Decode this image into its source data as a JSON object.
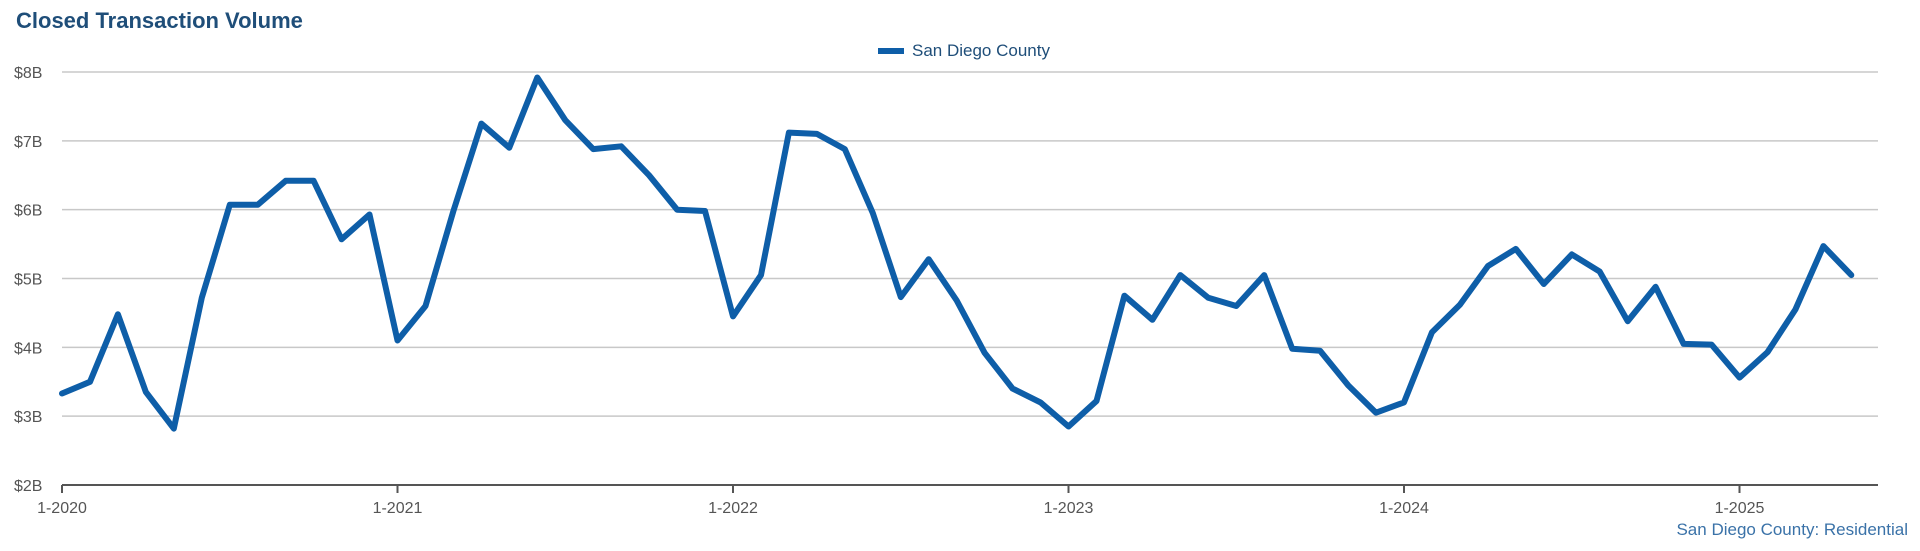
{
  "title": "Closed Transaction Volume",
  "source_note": "San Diego County: Residential",
  "colors": {
    "series": "#0e5ea8",
    "grid": "#c8c8c8",
    "axis": "#555555",
    "title": "#1f4e79"
  },
  "chart_data": {
    "type": "line",
    "title": "Closed Transaction Volume",
    "xlabel": "",
    "ylabel": "",
    "ylim": [
      2,
      8
    ],
    "y_unit": "billions USD",
    "y_ticks": [
      2,
      3,
      4,
      5,
      6,
      7,
      8
    ],
    "y_tick_labels": [
      "$2B",
      "$3B",
      "$4B",
      "$5B",
      "$6B",
      "$7B",
      "$8B"
    ],
    "x_ticks": [
      "2020-01",
      "2021-01",
      "2022-01",
      "2023-01",
      "2024-01",
      "2025-01"
    ],
    "x_tick_labels": [
      "1-2020",
      "1-2021",
      "1-2022",
      "1-2023",
      "1-2024",
      "1-2025"
    ],
    "x_range": [
      "2020-01",
      "2025-06"
    ],
    "grid": true,
    "legend_position": "top-center",
    "series": [
      {
        "name": "San Diego County",
        "x": [
          "2020-01",
          "2020-02",
          "2020-03",
          "2020-04",
          "2020-05",
          "2020-06",
          "2020-07",
          "2020-08",
          "2020-09",
          "2020-10",
          "2020-11",
          "2020-12",
          "2021-01",
          "2021-02",
          "2021-03",
          "2021-04",
          "2021-05",
          "2021-06",
          "2021-07",
          "2021-08",
          "2021-09",
          "2021-10",
          "2021-11",
          "2021-12",
          "2022-01",
          "2022-02",
          "2022-03",
          "2022-04",
          "2022-05",
          "2022-06",
          "2022-07",
          "2022-08",
          "2022-09",
          "2022-10",
          "2022-11",
          "2022-12",
          "2023-01",
          "2023-02",
          "2023-03",
          "2023-04",
          "2023-05",
          "2023-06",
          "2023-07",
          "2023-08",
          "2023-09",
          "2023-10",
          "2023-11",
          "2023-12",
          "2024-01",
          "2024-02",
          "2024-03",
          "2024-04",
          "2024-05",
          "2024-06",
          "2024-07",
          "2024-08",
          "2024-09",
          "2024-10",
          "2024-11",
          "2024-12",
          "2025-01",
          "2025-02",
          "2025-03",
          "2025-04",
          "2025-05"
        ],
        "values": [
          3.33,
          3.5,
          4.48,
          3.35,
          2.82,
          4.72,
          6.07,
          6.07,
          6.42,
          6.42,
          5.57,
          5.93,
          4.1,
          4.6,
          5.98,
          7.25,
          6.9,
          7.92,
          7.3,
          6.88,
          6.92,
          6.5,
          6.0,
          5.98,
          4.45,
          5.05,
          7.12,
          7.1,
          6.88,
          5.95,
          4.73,
          5.28,
          4.68,
          3.92,
          3.4,
          3.2,
          2.85,
          3.22,
          4.75,
          4.4,
          5.05,
          4.72,
          4.6,
          5.05,
          3.98,
          3.95,
          3.45,
          3.05,
          3.2,
          4.22,
          4.62,
          5.18,
          5.43,
          4.92,
          5.35,
          5.1,
          4.38,
          4.88,
          4.05,
          4.04,
          3.56,
          3.93,
          4.55,
          5.47,
          5.05
        ]
      }
    ]
  }
}
